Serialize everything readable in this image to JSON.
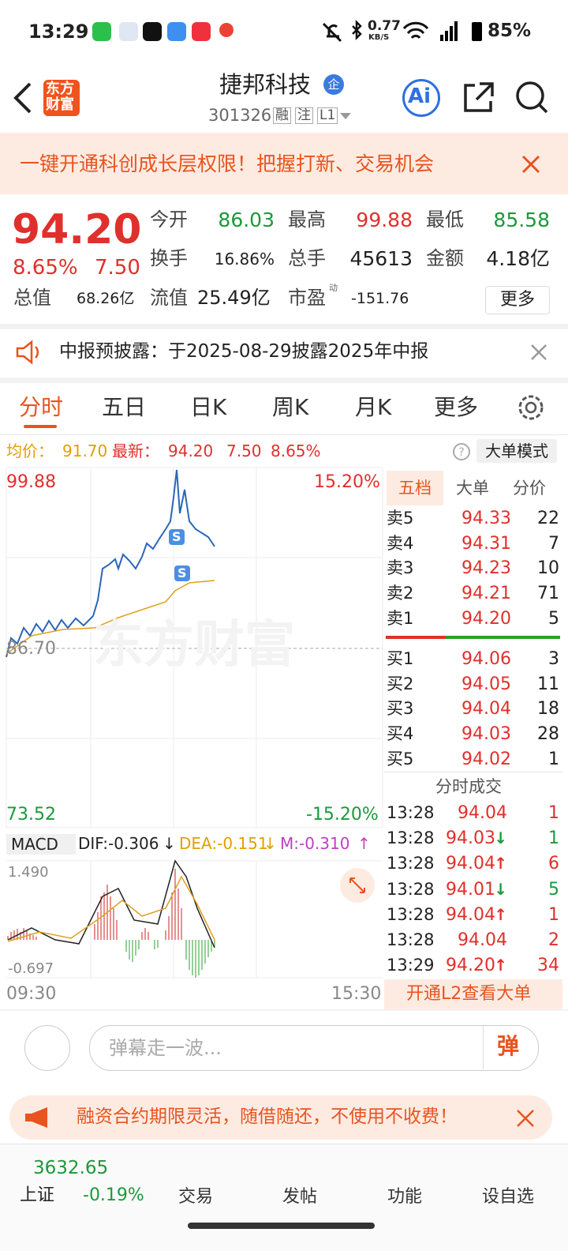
{
  "status": {
    "time": "13:29",
    "speed": "0.77",
    "speed_unit": "KB/S",
    "battery": "85%"
  },
  "header": {
    "logo": [
      "东方",
      "财富"
    ],
    "title": "捷邦科技",
    "badge": "企",
    "code": "301326",
    "tags": [
      "融",
      "注",
      "L1"
    ],
    "ai": "Ai"
  },
  "promo": {
    "text": "一键开通科创成长层权限！把握打新、交易机会"
  },
  "quote": {
    "price": "94.20",
    "pct": "8.65%",
    "change": "7.50",
    "fields": [
      {
        "label": "今开",
        "value": "86.03"
      },
      {
        "label": "最高",
        "value": "99.88"
      },
      {
        "label": "最低",
        "value": "85.58"
      },
      {
        "label": "换手",
        "value": "16.86%"
      },
      {
        "label": "总手",
        "value": "45613"
      },
      {
        "label": "金额",
        "value": "4.18亿"
      },
      {
        "label": "总值",
        "value": "68.26亿"
      },
      {
        "label": "流值",
        "value": "25.49亿"
      },
      {
        "label": "市盈",
        "sup": "动",
        "value": "-151.76"
      }
    ],
    "more": "更多"
  },
  "notice": {
    "text": "中报预披露：于2025-08-29披露2025年中报"
  },
  "tabs": [
    "分时",
    "五日",
    "日K",
    "周K",
    "月K",
    "更多"
  ],
  "info": {
    "avg_label": "均价：",
    "avg": "91.70",
    "last_label": "最新：",
    "last": "94.20",
    "change": "7.50",
    "pct": "8.65%",
    "mode": "大单模式"
  },
  "chart": {
    "top": "99.88",
    "top_pct": "15.20%",
    "mid": "86.70",
    "bottom": "73.52",
    "bottom_pct": "-15.20%",
    "watermark": "东方财富",
    "start": "09:30",
    "end": "15:30",
    "macd": {
      "name": "MACD",
      "dif": "DIF:-0.306",
      "dif_dir": "↓",
      "dea": "DEA:-0.151",
      "dea_dir": "↓",
      "m": "M:-0.310",
      "m_dir": "↑",
      "top": "1.490",
      "bottom": "-0.697"
    }
  },
  "book": {
    "tabs": [
      "五档",
      "大单",
      "分价"
    ],
    "sells": [
      {
        "label": "卖5",
        "price": "94.33",
        "vol": "22"
      },
      {
        "label": "卖4",
        "price": "94.31",
        "vol": "7"
      },
      {
        "label": "卖3",
        "price": "94.23",
        "vol": "10"
      },
      {
        "label": "卖2",
        "price": "94.21",
        "vol": "71"
      },
      {
        "label": "卖1",
        "price": "94.20",
        "vol": "5"
      }
    ],
    "buys": [
      {
        "label": "买1",
        "price": "94.06",
        "vol": "3"
      },
      {
        "label": "买2",
        "price": "94.05",
        "vol": "11"
      },
      {
        "label": "买3",
        "price": "94.04",
        "vol": "18"
      },
      {
        "label": "买4",
        "price": "94.03",
        "vol": "28"
      },
      {
        "label": "买5",
        "price": "94.02",
        "vol": "1"
      }
    ],
    "trades_title": "分时成交",
    "trades": [
      {
        "time": "13:28",
        "price": "94.04",
        "dir": "",
        "vol": "1"
      },
      {
        "time": "13:28",
        "price": "94.03",
        "dir": "↓",
        "vol": "1"
      },
      {
        "time": "13:28",
        "price": "94.04",
        "dir": "↑",
        "vol": "6"
      },
      {
        "time": "13:28",
        "price": "94.01",
        "dir": "↓",
        "vol": "5"
      },
      {
        "time": "13:28",
        "price": "94.04",
        "dir": "↑",
        "vol": "1"
      },
      {
        "time": "13:28",
        "price": "94.04",
        "dir": "",
        "vol": "2"
      },
      {
        "time": "13:29",
        "price": "94.20",
        "dir": "↑",
        "vol": "34"
      }
    ],
    "l2": "开通L2查看大单"
  },
  "comment": {
    "placeholder": "弹幕走一波...",
    "button": "弹"
  },
  "banner": {
    "text": "融资合约期限灵活，随借随还，不使用不收费！"
  },
  "nav": {
    "index_value": "3632.65",
    "index_name": "上证",
    "index_change": "-0.19%",
    "items": [
      "交易",
      "发帖",
      "功能",
      "设自选"
    ]
  }
}
